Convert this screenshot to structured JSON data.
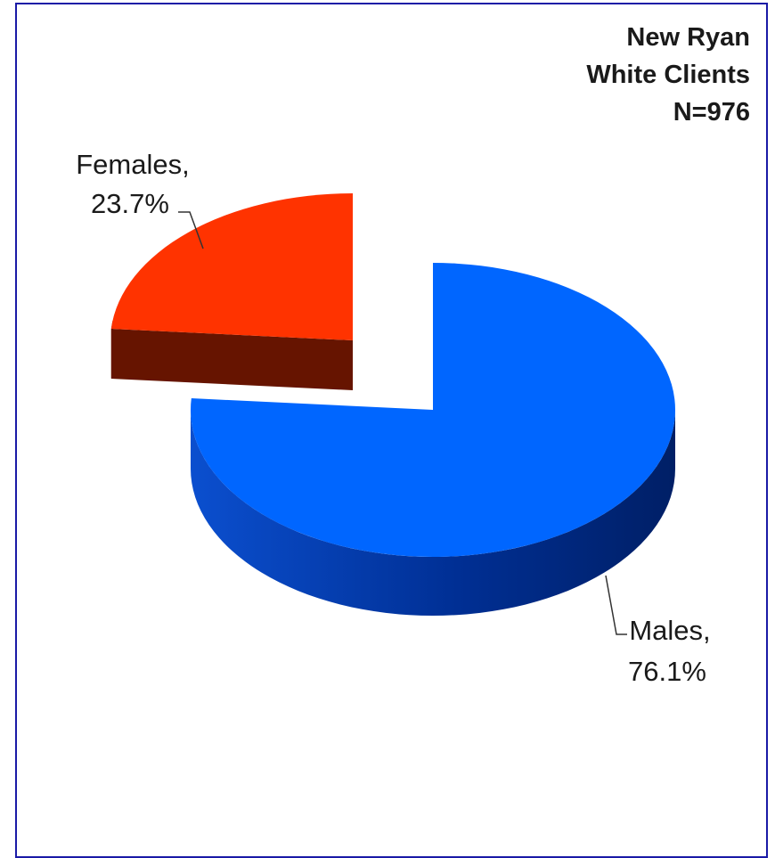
{
  "chart_data": {
    "type": "pie",
    "title": [
      "New Ryan",
      "White Clients",
      "N=976"
    ],
    "slices": [
      {
        "name": "Males",
        "value": 76.1,
        "label": [
          "Males,",
          "76.1%"
        ],
        "color": "#0066ff",
        "side_color": "#002b80"
      },
      {
        "name": "Females",
        "value": 23.7,
        "label": [
          "Females,",
          "23.7%"
        ],
        "color": "#ff3300",
        "side_color": "#661400",
        "exploded": true
      }
    ]
  },
  "colors": {
    "border": "#1a1aa6",
    "background": "#ffffff",
    "text": "#1a1a1a",
    "leader_line": "#333333"
  }
}
